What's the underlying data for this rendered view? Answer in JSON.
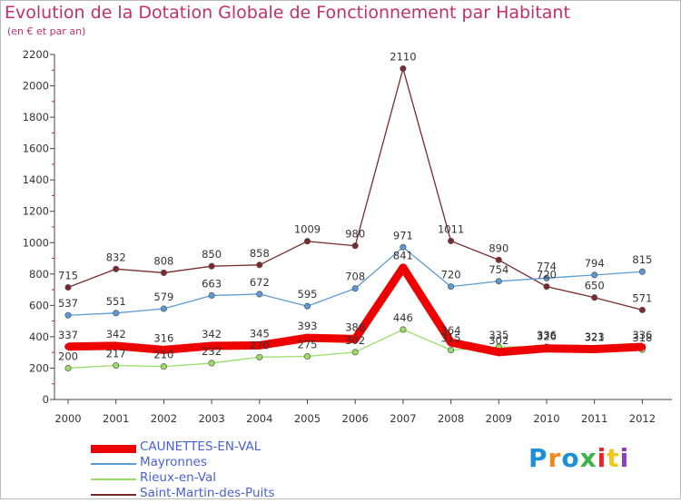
{
  "title": "Evolution de la Dotation Globale de Fonctionnement par Habitant",
  "subtitle": "(en € et par an)",
  "logo": {
    "text": "Proxiti",
    "colors": [
      "#1e90d6",
      "#f08a1c",
      "#1e90d6",
      "#3cb44b",
      "#e8262c",
      "#f0c81c",
      "#8a3cc8"
    ]
  },
  "chart_data": {
    "type": "line",
    "x": [
      "2000",
      "2001",
      "2002",
      "2003",
      "2004",
      "2005",
      "2006",
      "2007",
      "2008",
      "2009",
      "2010",
      "2011",
      "2012"
    ],
    "ylim": [
      0,
      2200
    ],
    "yticks": [
      0,
      200,
      400,
      600,
      800,
      1000,
      1200,
      1400,
      1600,
      1800,
      2000,
      2200
    ],
    "grid": false,
    "legend_position": "bottom-left",
    "series": [
      {
        "name": "CAUNETTES-EN-VAL",
        "color": "#ee0000",
        "values": [
          337,
          342,
          316,
          342,
          345,
          393,
          386,
          841,
          364,
          302,
          326,
          321,
          336
        ]
      },
      {
        "name": "Mayronnes",
        "color": "#5b9bd5",
        "values": [
          537,
          551,
          579,
          663,
          672,
          595,
          708,
          971,
          720,
          754,
          774,
          794,
          815
        ]
      },
      {
        "name": "Rieux-en-Val",
        "color": "#99dd66",
        "values": [
          200,
          217,
          210,
          232,
          270,
          275,
          302,
          446,
          315,
          335,
          336,
          323,
          318
        ]
      },
      {
        "name": "Saint-Martin-des-Puits",
        "color": "#7a2a2a",
        "values": [
          715,
          832,
          808,
          850,
          858,
          1009,
          980,
          2110,
          1011,
          890,
          720,
          650,
          571
        ]
      }
    ]
  }
}
